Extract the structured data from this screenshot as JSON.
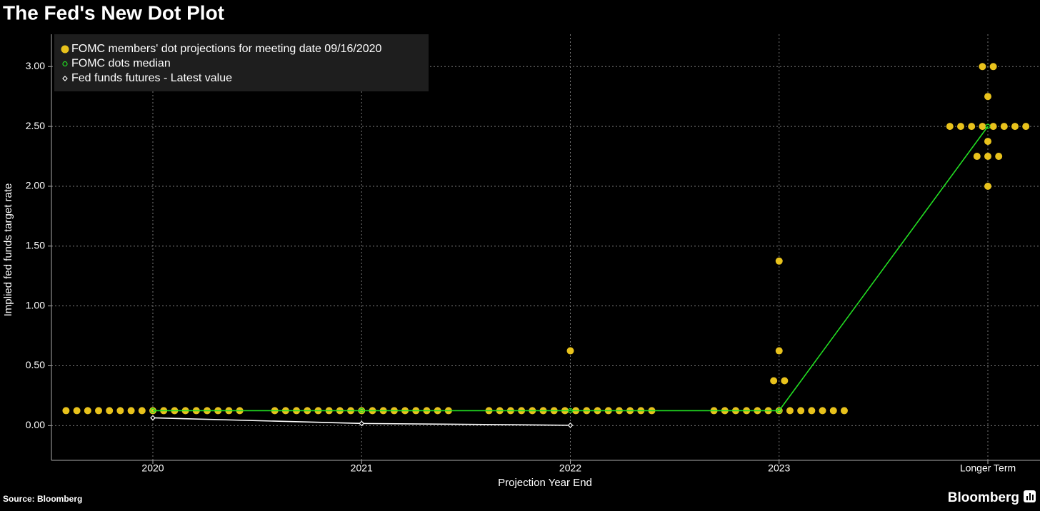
{
  "chart_data": {
    "type": "dot",
    "title": "The Fed's New Dot Plot",
    "x_label": "Projection Year End",
    "y_label": "Implied fed funds target rate",
    "categories": [
      "2020",
      "2021",
      "2022",
      "2023",
      "Longer Term"
    ],
    "ylim": [
      -0.29,
      3.27
    ],
    "yticks": [
      {
        "value": 0,
        "label": "0.00"
      },
      {
        "value": 0.5,
        "label": "0.50"
      },
      {
        "value": 1,
        "label": "1.00"
      },
      {
        "value": 1.5,
        "label": "1.50"
      },
      {
        "value": 2,
        "label": "2.00"
      },
      {
        "value": 2.5,
        "label": "2.50"
      },
      {
        "value": 3,
        "label": "3.00"
      }
    ],
    "grid": true,
    "legend": "upper-left",
    "series": [
      {
        "name": "FOMC members' dot projections for meeting date 09/16/2020",
        "color": "#e8c21c",
        "marker": "dot",
        "values": [
          [
            0.125,
            0.125,
            0.125,
            0.125,
            0.125,
            0.125,
            0.125,
            0.125,
            0.125,
            0.125,
            0.125,
            0.125,
            0.125,
            0.125,
            0.125,
            0.125,
            0.125
          ],
          [
            0.125,
            0.125,
            0.125,
            0.125,
            0.125,
            0.125,
            0.125,
            0.125,
            0.125,
            0.125,
            0.125,
            0.125,
            0.125,
            0.125,
            0.125,
            0.125,
            0.125
          ],
          [
            0.125,
            0.125,
            0.125,
            0.125,
            0.125,
            0.125,
            0.125,
            0.125,
            0.125,
            0.125,
            0.125,
            0.125,
            0.125,
            0.125,
            0.125,
            0.125,
            0.625
          ],
          [
            0.125,
            0.125,
            0.125,
            0.125,
            0.125,
            0.125,
            0.125,
            0.125,
            0.125,
            0.125,
            0.125,
            0.125,
            0.125,
            0.375,
            0.375,
            0.625,
            1.375
          ],
          [
            2.0,
            2.25,
            2.25,
            2.25,
            2.375,
            2.5,
            2.5,
            2.5,
            2.5,
            2.5,
            2.5,
            2.5,
            2.5,
            2.75,
            3.0,
            3.0
          ]
        ]
      },
      {
        "name": "FOMC dots median",
        "color": "#22dd22",
        "marker": "ring",
        "values": [
          0.125,
          0.125,
          0.125,
          0.125,
          2.5
        ]
      },
      {
        "name": "Fed funds futures - Latest value",
        "color": "#ffffff",
        "marker": "diamond",
        "values": [
          0.065,
          0.018,
          0.003,
          null,
          null
        ]
      }
    ]
  },
  "source": "Source: Bloomberg",
  "logo": "Bloomberg"
}
